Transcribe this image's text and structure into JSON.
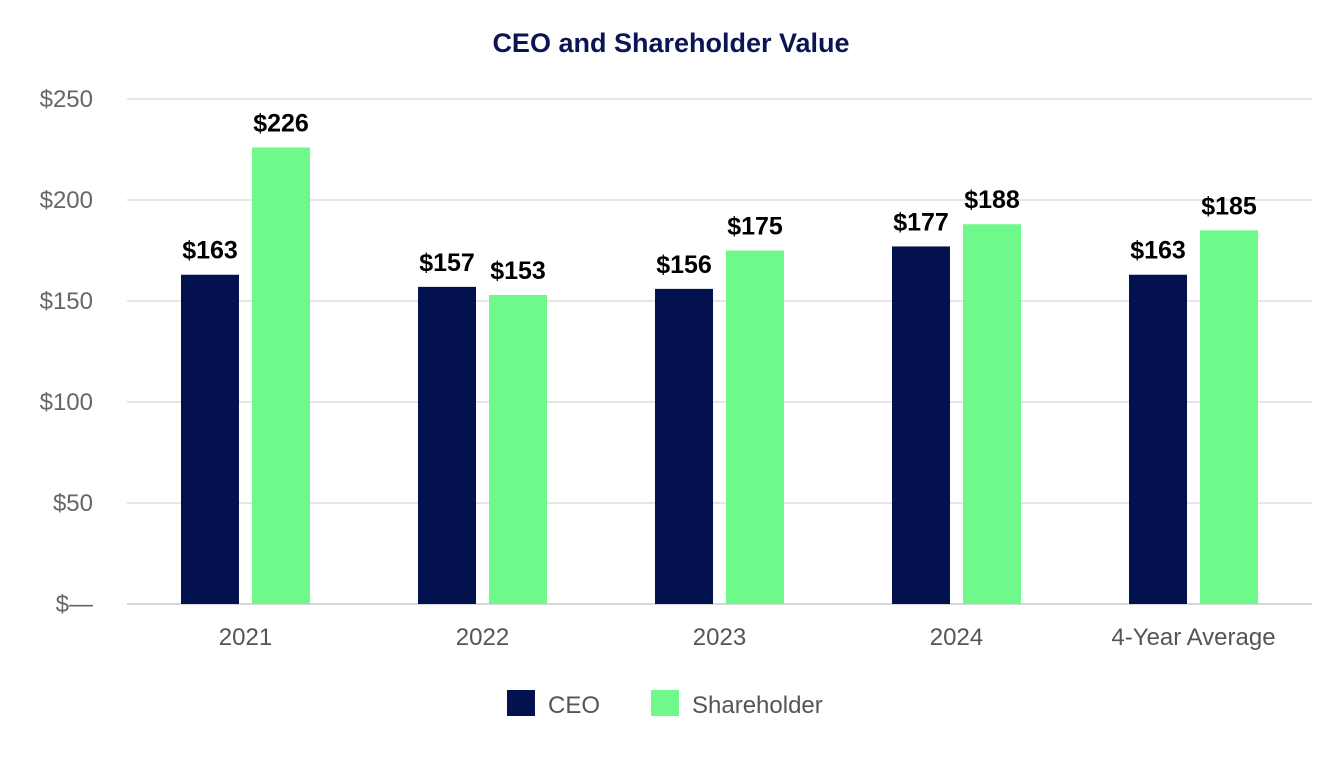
{
  "chart_data": {
    "type": "bar",
    "title": "CEO and Shareholder Value",
    "xlabel": "",
    "ylabel": "",
    "categories": [
      "2021",
      "2022",
      "2023",
      "2024",
      "4-Year Average"
    ],
    "series": [
      {
        "name": "CEO",
        "values": [
          163,
          157,
          156,
          177,
          163
        ],
        "labels": [
          "$163",
          "$157",
          "$156",
          "$177",
          "$163"
        ],
        "color": "#04114f"
      },
      {
        "name": "Shareholder",
        "values": [
          226,
          153,
          175,
          188,
          185
        ],
        "labels": [
          "$226",
          "$153",
          "$175",
          "$188",
          "$185"
        ],
        "color": "#6ff98a"
      }
    ],
    "ylim": [
      0,
      250
    ],
    "yticks": [
      0,
      50,
      100,
      150,
      200,
      250
    ],
    "ytick_labels": [
      "$—",
      "$50",
      "$100",
      "$150",
      "$200",
      "$250"
    ],
    "grid": true,
    "legend_position": "bottom"
  }
}
